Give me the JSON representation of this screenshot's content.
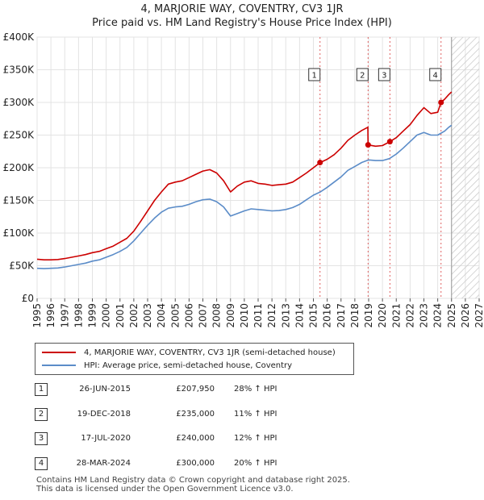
{
  "title_line1": "4, MARJORIE WAY, COVENTRY, CV3 1JR",
  "title_line2": "Price paid vs. HM Land Registry's House Price Index (HPI)",
  "legend": [
    {
      "label": "4, MARJORIE WAY, COVENTRY, CV3 1JR (semi-detached house)",
      "color": "#cc0000"
    },
    {
      "label": "HPI: Average price, semi-detached house, Coventry",
      "color": "#5b8cc8"
    }
  ],
  "transactions": [
    {
      "num": "1",
      "date": "26-JUN-2015",
      "price": "£207,950",
      "hpi": "28% ↑ HPI"
    },
    {
      "num": "2",
      "date": "19-DEC-2018",
      "price": "£235,000",
      "hpi": "11% ↑ HPI"
    },
    {
      "num": "3",
      "date": "17-JUL-2020",
      "price": "£240,000",
      "hpi": "12% ↑ HPI"
    },
    {
      "num": "4",
      "date": "28-MAR-2024",
      "price": "£300,000",
      "hpi": "20% ↑ HPI"
    }
  ],
  "footer": {
    "line1": "Contains HM Land Registry data © Crown copyright and database right 2025.",
    "line2": "This data is licensed under the Open Government Licence v3.0."
  },
  "chart_data": {
    "type": "line",
    "xlim": [
      1995,
      2027
    ],
    "ylim": [
      0,
      400000
    ],
    "x_ticks": [
      "1995",
      "1996",
      "1997",
      "1998",
      "1999",
      "2000",
      "2001",
      "2002",
      "2003",
      "2004",
      "2005",
      "2006",
      "2007",
      "2008",
      "2009",
      "2010",
      "2011",
      "2012",
      "2013",
      "2014",
      "2015",
      "2016",
      "2017",
      "2018",
      "2019",
      "2020",
      "2021",
      "2022",
      "2023",
      "2024",
      "2025",
      "2026",
      "2027"
    ],
    "y_ticks": [
      {
        "value": 0,
        "label": "£0"
      },
      {
        "value": 50000,
        "label": "£50K"
      },
      {
        "value": 100000,
        "label": "£100K"
      },
      {
        "value": 150000,
        "label": "£150K"
      },
      {
        "value": 200000,
        "label": "£200K"
      },
      {
        "value": 250000,
        "label": "£250K"
      },
      {
        "value": 300000,
        "label": "£300K"
      },
      {
        "value": 350000,
        "label": "£350K"
      },
      {
        "value": 400000,
        "label": "£400K"
      }
    ],
    "hatch_from": 2025.0,
    "sale_events": [
      {
        "label": "1",
        "x": 2015.48,
        "y": 207950
      },
      {
        "label": "2",
        "x": 2018.96,
        "y": 235000
      },
      {
        "label": "3",
        "x": 2020.54,
        "y": 240000
      },
      {
        "label": "4",
        "x": 2024.24,
        "y": 300000
      }
    ],
    "series": [
      {
        "name": "4, MARJORIE WAY, COVENTRY, CV3 1JR (semi-detached house)",
        "color": "#cc0000",
        "points": [
          [
            1995,
            60000
          ],
          [
            1995.5,
            59000
          ],
          [
            1996,
            59000
          ],
          [
            1996.5,
            59500
          ],
          [
            1997,
            61000
          ],
          [
            1997.5,
            63000
          ],
          [
            1998,
            65000
          ],
          [
            1998.5,
            67000
          ],
          [
            1999,
            70000
          ],
          [
            1999.5,
            72000
          ],
          [
            2000,
            76000
          ],
          [
            2000.5,
            80000
          ],
          [
            2001,
            86000
          ],
          [
            2001.5,
            92000
          ],
          [
            2002,
            103000
          ],
          [
            2002.5,
            118000
          ],
          [
            2003,
            134000
          ],
          [
            2003.5,
            150000
          ],
          [
            2004,
            163000
          ],
          [
            2004.5,
            175000
          ],
          [
            2005,
            178000
          ],
          [
            2005.5,
            180000
          ],
          [
            2006,
            185000
          ],
          [
            2006.5,
            190000
          ],
          [
            2007,
            195000
          ],
          [
            2007.5,
            197000
          ],
          [
            2008,
            192000
          ],
          [
            2008.5,
            180000
          ],
          [
            2009,
            163000
          ],
          [
            2009.5,
            172000
          ],
          [
            2010,
            178000
          ],
          [
            2010.5,
            180000
          ],
          [
            2011,
            176000
          ],
          [
            2011.5,
            175000
          ],
          [
            2012,
            173000
          ],
          [
            2012.5,
            174000
          ],
          [
            2013,
            175000
          ],
          [
            2013.5,
            178000
          ],
          [
            2014,
            185000
          ],
          [
            2014.5,
            192000
          ],
          [
            2015,
            200000
          ],
          [
            2015.48,
            207950
          ],
          [
            2016,
            213000
          ],
          [
            2016.5,
            220000
          ],
          [
            2017,
            230000
          ],
          [
            2017.5,
            242000
          ],
          [
            2018,
            250000
          ],
          [
            2018.5,
            257000
          ],
          [
            2018.94,
            262000
          ],
          [
            2018.96,
            235000
          ],
          [
            2019.5,
            233000
          ],
          [
            2020,
            234000
          ],
          [
            2020.54,
            240000
          ],
          [
            2021,
            246000
          ],
          [
            2021.5,
            256000
          ],
          [
            2022,
            266000
          ],
          [
            2022.5,
            280000
          ],
          [
            2023,
            292000
          ],
          [
            2023.5,
            283000
          ],
          [
            2024,
            285000
          ],
          [
            2024.24,
            300000
          ],
          [
            2024.5,
            305000
          ],
          [
            2024.8,
            312000
          ],
          [
            2025.0,
            316000
          ]
        ]
      },
      {
        "name": "HPI: Average price, semi-detached house, Coventry",
        "color": "#5b8cc8",
        "points": [
          [
            1995,
            46000
          ],
          [
            1995.5,
            45500
          ],
          [
            1996,
            46000
          ],
          [
            1996.5,
            46500
          ],
          [
            1997,
            48000
          ],
          [
            1997.5,
            50000
          ],
          [
            1998,
            52000
          ],
          [
            1998.5,
            54000
          ],
          [
            1999,
            57000
          ],
          [
            1999.5,
            59000
          ],
          [
            2000,
            63000
          ],
          [
            2000.5,
            67000
          ],
          [
            2001,
            72000
          ],
          [
            2001.5,
            78000
          ],
          [
            2002,
            88000
          ],
          [
            2002.5,
            100000
          ],
          [
            2003,
            112000
          ],
          [
            2003.5,
            123000
          ],
          [
            2004,
            132000
          ],
          [
            2004.5,
            138000
          ],
          [
            2005,
            140000
          ],
          [
            2005.5,
            141000
          ],
          [
            2006,
            144000
          ],
          [
            2006.5,
            148000
          ],
          [
            2007,
            151000
          ],
          [
            2007.5,
            152000
          ],
          [
            2008,
            148000
          ],
          [
            2008.5,
            140000
          ],
          [
            2009,
            126000
          ],
          [
            2009.5,
            130000
          ],
          [
            2010,
            134000
          ],
          [
            2010.5,
            137000
          ],
          [
            2011,
            136000
          ],
          [
            2011.5,
            135000
          ],
          [
            2012,
            134000
          ],
          [
            2012.5,
            134500
          ],
          [
            2013,
            136000
          ],
          [
            2013.5,
            139000
          ],
          [
            2014,
            144000
          ],
          [
            2014.5,
            151000
          ],
          [
            2015,
            158000
          ],
          [
            2015.5,
            163000
          ],
          [
            2016,
            170000
          ],
          [
            2016.5,
            178000
          ],
          [
            2017,
            186000
          ],
          [
            2017.5,
            196000
          ],
          [
            2018,
            202000
          ],
          [
            2018.5,
            208000
          ],
          [
            2019,
            212000
          ],
          [
            2019.5,
            211000
          ],
          [
            2020,
            211000
          ],
          [
            2020.5,
            214000
          ],
          [
            2021,
            221000
          ],
          [
            2021.5,
            230000
          ],
          [
            2022,
            240000
          ],
          [
            2022.5,
            250000
          ],
          [
            2023,
            254000
          ],
          [
            2023.5,
            250000
          ],
          [
            2024,
            250000
          ],
          [
            2024.5,
            256000
          ],
          [
            2024.8,
            262000
          ],
          [
            2025.0,
            265000
          ]
        ]
      }
    ]
  }
}
